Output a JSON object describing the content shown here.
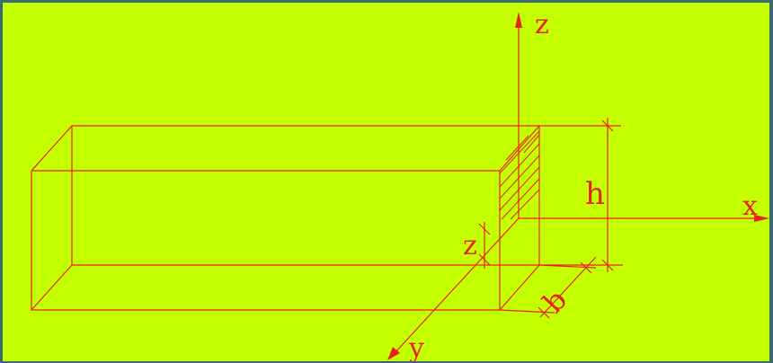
{
  "diagram": {
    "background_color": "#c3ff00",
    "frame_color": "#3a6b74",
    "line_color": "#e8231a",
    "labels": {
      "axis_z": "z",
      "axis_x": "x",
      "axis_y": "y",
      "height": "h",
      "width": "b",
      "offset_z": "z"
    }
  }
}
